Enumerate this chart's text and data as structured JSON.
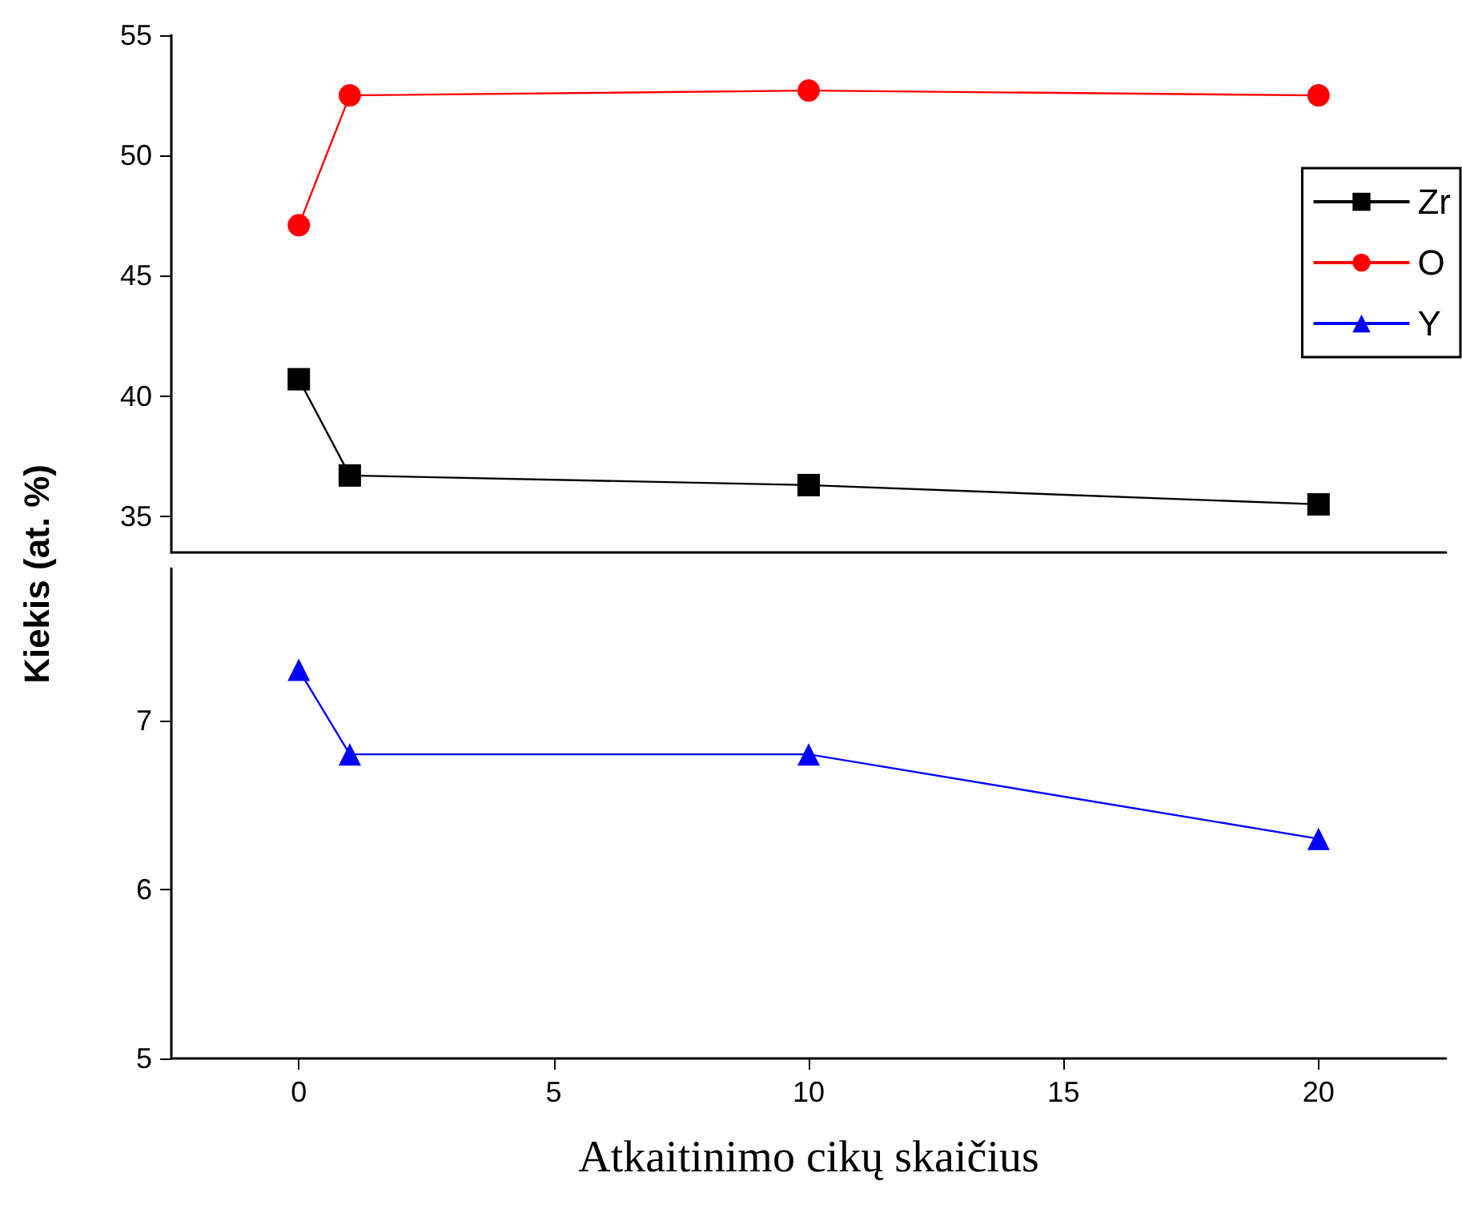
{
  "chart_data": [
    {
      "type": "line",
      "ylabel": "Kiekis (at. %)",
      "x": [
        0,
        1,
        10,
        20
      ],
      "xlim": [
        -2.5,
        22.5
      ],
      "ylim": [
        33.5,
        55
      ],
      "yticks": [
        35,
        40,
        45,
        50,
        55
      ],
      "tick_labels": "y",
      "grid": false,
      "legend": "top right",
      "series": [
        {
          "name": "Zr",
          "color": "#000000",
          "marker": "square",
          "values": [
            40.7,
            36.7,
            36.3,
            35.5
          ]
        },
        {
          "name": "O",
          "color": "#ff0000",
          "marker": "circle",
          "values": [
            47.1,
            52.5,
            52.7,
            52.5
          ]
        }
      ]
    },
    {
      "type": "line",
      "xlabel": "Atkaitinimo cikų skaičius",
      "x": [
        0,
        1,
        10,
        20
      ],
      "xlim": [
        -2.5,
        22.5
      ],
      "xticks": [
        0,
        5,
        10,
        15,
        20
      ],
      "ylim": [
        5,
        7.9
      ],
      "yticks": [
        5,
        6,
        7
      ],
      "grid": false,
      "legend": "top right",
      "series": [
        {
          "name": "Y",
          "color": "#0000ff",
          "marker": "triangle",
          "values": [
            7.3,
            6.8,
            6.8,
            6.3
          ]
        }
      ]
    }
  ]
}
